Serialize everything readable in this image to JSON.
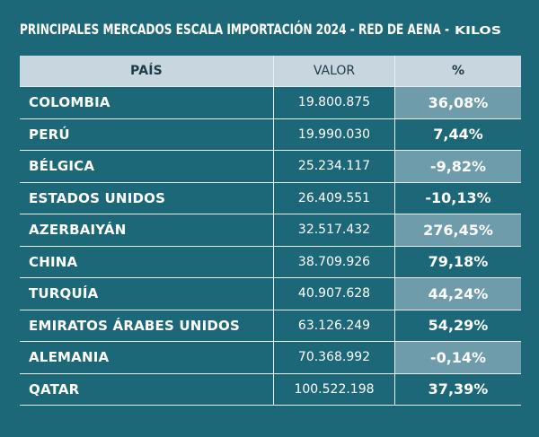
{
  "header": {
    "title": "PRINCIPALES MERCADOS ESCALA IMPORTACIÓN 2024 - RED DE AENA -",
    "unit": "KILOS"
  },
  "table": {
    "columns": [
      "PAÍS",
      "VALOR",
      "%"
    ],
    "rows": [
      [
        "COLOMBIA",
        "19.800.875",
        "36,08%"
      ],
      [
        "PERÚ",
        "19.990.030",
        "7,44%"
      ],
      [
        "BÉLGICA",
        "25.234.117",
        "-9,82%"
      ],
      [
        "ESTADOS UNIDOS",
        "26.409.551",
        "-10,13%"
      ],
      [
        "AZERBAIYÁN",
        "32.517.432",
        "276,45%"
      ],
      [
        "CHINA",
        "38.709.926",
        "79,18%"
      ],
      [
        "TURQUÍA",
        "40.907.628",
        "44,24%"
      ],
      [
        "EMIRATOS ÁRABES UNIDOS",
        "63.126.249",
        "54,29%"
      ],
      [
        "ALEMANIA",
        "70.368.992",
        "-0,14%"
      ],
      [
        "QATAR",
        "100.522.198",
        "37,39%"
      ]
    ]
  }
}
